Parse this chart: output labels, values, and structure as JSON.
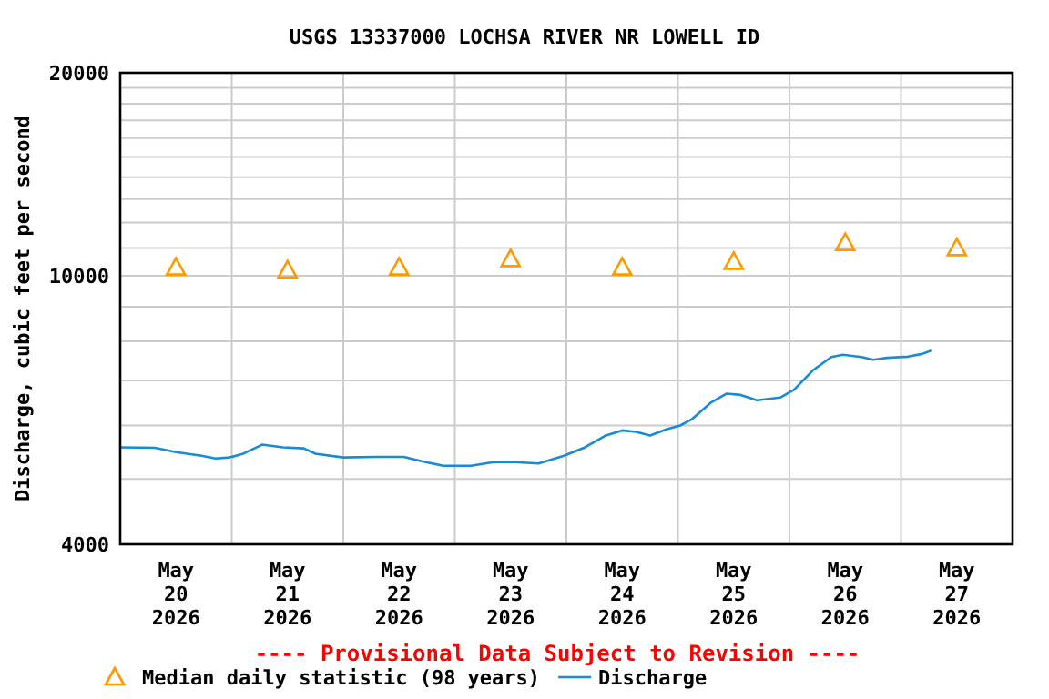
{
  "chart_data": {
    "type": "line",
    "title": "USGS 13337000 LOCHSA RIVER NR LOWELL ID",
    "ylabel": "Discharge, cubic feet per second",
    "log": true,
    "grid": true,
    "legend": "bottom",
    "xlim": [
      "2026-05-20T00:00",
      "2026-05-28T00:00"
    ],
    "xticks": [
      {
        "value": "2026-05-20T00:00",
        "label": null
      },
      {
        "value": "2026-05-21T00:00",
        "label": null
      },
      {
        "value": "2026-05-22T00:00",
        "label": null
      },
      {
        "value": "2026-05-23T00:00",
        "label": null
      },
      {
        "value": "2026-05-24T00:00",
        "label": null
      },
      {
        "value": "2026-05-25T00:00",
        "label": null
      },
      {
        "value": "2026-05-26T00:00",
        "label": null
      },
      {
        "value": "2026-05-27T00:00",
        "label": null
      },
      {
        "value": "2026-05-28T00:00",
        "label": null
      },
      {
        "value": "2026-05-20T12:00",
        "label": "May\n20\n2026"
      },
      {
        "value": "2026-05-21T12:00",
        "label": "May\n21\n2026"
      },
      {
        "value": "2026-05-22T12:00",
        "label": "May\n22\n2026"
      },
      {
        "value": "2026-05-23T12:00",
        "label": "May\n23\n2026"
      },
      {
        "value": "2026-05-24T12:00",
        "label": "May\n24\n2026"
      },
      {
        "value": "2026-05-25T12:00",
        "label": "May\n25\n2026"
      },
      {
        "value": "2026-05-26T12:00",
        "label": "May\n26\n2026"
      },
      {
        "value": "2026-05-27T12:00",
        "label": "May\n27\n2026"
      }
    ],
    "ylim": [
      4000,
      20000
    ],
    "yticks": [
      4000,
      {
        "value": 5000,
        "label": null
      },
      {
        "value": 6000,
        "label": null
      },
      {
        "value": 7000,
        "label": null
      },
      {
        "value": 8000,
        "label": null
      },
      {
        "value": 9000,
        "label": null
      },
      10000,
      {
        "value": 11000,
        "label": null
      },
      {
        "value": 12000,
        "label": null
      },
      {
        "value": 13000,
        "label": null
      },
      {
        "value": 14000,
        "label": null
      },
      {
        "value": 15000,
        "label": null
      },
      {
        "value": 16000,
        "label": null
      },
      {
        "value": 17000,
        "label": null
      },
      {
        "value": 18000,
        "label": null
      },
      {
        "value": 19000,
        "label": null
      },
      20000
    ],
    "annotations": [
      "---- Provisional Data Subject to Revision ----"
    ],
    "series": [
      {
        "name": "Median daily statistic (98 years)",
        "type": "scatter",
        "marker": "triangle",
        "color": "#ff9900",
        "x": [
          "2026-05-20T12:00",
          "2026-05-21T12:00",
          "2026-05-22T12:00",
          "2026-05-23T12:00",
          "2026-05-24T12:00",
          "2026-05-25T12:00",
          "2026-05-26T12:00",
          "2026-05-27T12:00"
        ],
        "values": [
          10300,
          10200,
          10300,
          10600,
          10300,
          10500,
          11200,
          11000
        ]
      },
      {
        "name": "Discharge",
        "marker": "none",
        "color": "#1a8ad4",
        "x": [
          "2026-05-20T00:00",
          "2026-05-20T07:30",
          "2026-05-20T12:00",
          "2026-05-20T17:30",
          "2026-05-20T20:30",
          "2026-05-20T23:30",
          "2026-05-21T02:30",
          "2026-05-21T06:30",
          "2026-05-21T11:00",
          "2026-05-21T15:30",
          "2026-05-21T18:00",
          "2026-05-22T00:00",
          "2026-05-22T07:00",
          "2026-05-22T13:00",
          "2026-05-22T17:30",
          "2026-05-22T21:30",
          "2026-05-23T03:30",
          "2026-05-23T08:00",
          "2026-05-23T12:00",
          "2026-05-23T18:00",
          "2026-05-23T23:30",
          "2026-05-24T04:00",
          "2026-05-24T08:30",
          "2026-05-24T12:00",
          "2026-05-24T15:00",
          "2026-05-24T18:00",
          "2026-05-24T21:30",
          "2026-05-25T00:30",
          "2026-05-25T03:00",
          "2026-05-25T07:00",
          "2026-05-25T10:30",
          "2026-05-25T13:30",
          "2026-05-25T17:00",
          "2026-05-25T22:00",
          "2026-05-26T01:00",
          "2026-05-26T05:00",
          "2026-05-26T09:00",
          "2026-05-26T11:30",
          "2026-05-26T15:30",
          "2026-05-26T18:00",
          "2026-05-26T21:00",
          "2026-05-27T01:30",
          "2026-05-27T04:30",
          "2026-05-27T06:30"
        ],
        "values": [
          5570,
          5560,
          5480,
          5410,
          5360,
          5380,
          5450,
          5620,
          5570,
          5550,
          5450,
          5380,
          5390,
          5390,
          5300,
          5230,
          5230,
          5290,
          5300,
          5270,
          5410,
          5570,
          5800,
          5900,
          5870,
          5800,
          5920,
          6000,
          6130,
          6480,
          6690,
          6660,
          6540,
          6600,
          6780,
          7240,
          7580,
          7640,
          7580,
          7510,
          7560,
          7590,
          7660,
          7750
        ]
      }
    ]
  }
}
